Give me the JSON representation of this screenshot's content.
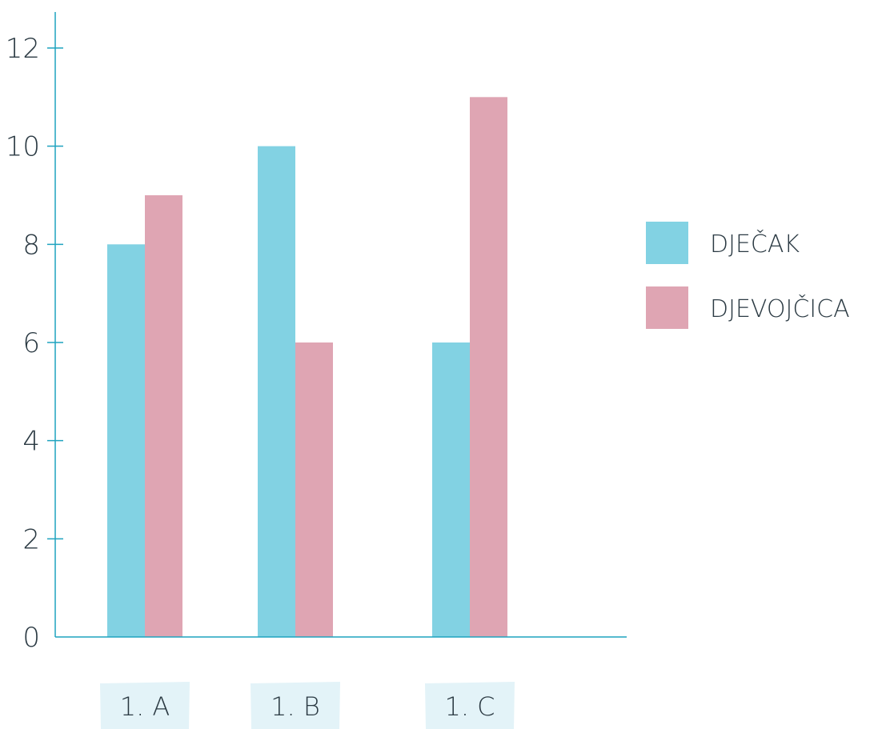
{
  "chart_data": {
    "type": "bar",
    "categories": [
      "1. A",
      "1. B",
      "1. C"
    ],
    "series": [
      {
        "name": "DJEČAK",
        "color": "#82d2e3",
        "values": [
          8,
          10,
          6
        ]
      },
      {
        "name": "DJEVOJČICA",
        "color": "#dfa5b3",
        "values": [
          9,
          6,
          11
        ]
      }
    ],
    "y_ticks": [
      "0",
      "2",
      "4",
      "6",
      "8",
      "10",
      "12"
    ],
    "ylim": [
      0,
      12
    ],
    "grid": false,
    "legend_position": "right",
    "colors": {
      "axis": "#1fa3bf",
      "category_label_background": "#e3f3f8",
      "text": "#2b3a43"
    }
  }
}
